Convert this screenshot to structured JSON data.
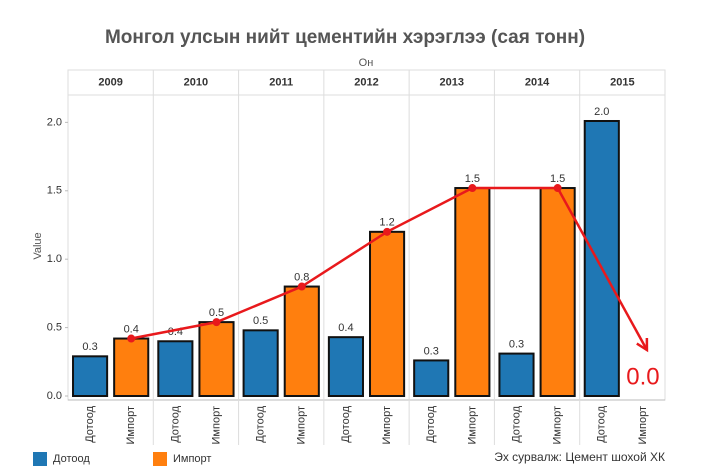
{
  "chart_data": {
    "type": "bar",
    "title": "Монгол улсын нийт цементийн хэрэглээ (сая тонн)",
    "xlabel": "Он",
    "ylabel": "Value",
    "categories": [
      "2009",
      "2010",
      "2011",
      "2012",
      "2013",
      "2014",
      "2015"
    ],
    "series": [
      {
        "name": "Дотоод",
        "color": "#1f77b4",
        "values": [
          0.29,
          0.4,
          0.48,
          0.43,
          0.26,
          0.31,
          2.01
        ],
        "value_labels": [
          "0.3",
          "0.4",
          "0.5",
          "0.4",
          "0.3",
          "0.3",
          "2.0"
        ]
      },
      {
        "name": "Импорт",
        "color": "#ff7f0e",
        "values": [
          0.42,
          0.54,
          0.8,
          1.2,
          1.52,
          1.52,
          0
        ],
        "value_labels": [
          "0.4",
          "0.5",
          "0.8",
          "1.2",
          "1.5",
          "1.5",
          "0.0"
        ]
      }
    ],
    "ylim": [
      0,
      2.2
    ],
    "yticks": [
      {
        "value": 0,
        "label": "0.0"
      },
      0.5,
      {
        "value": 1,
        "label": "1.0"
      },
      1.5,
      {
        "value": 2,
        "label": "2.0"
      }
    ],
    "grid": false,
    "trend_color": "#e8191c",
    "legend": "bottom-left",
    "source": "Эх сурвалж: Цемент шохой ХК"
  }
}
